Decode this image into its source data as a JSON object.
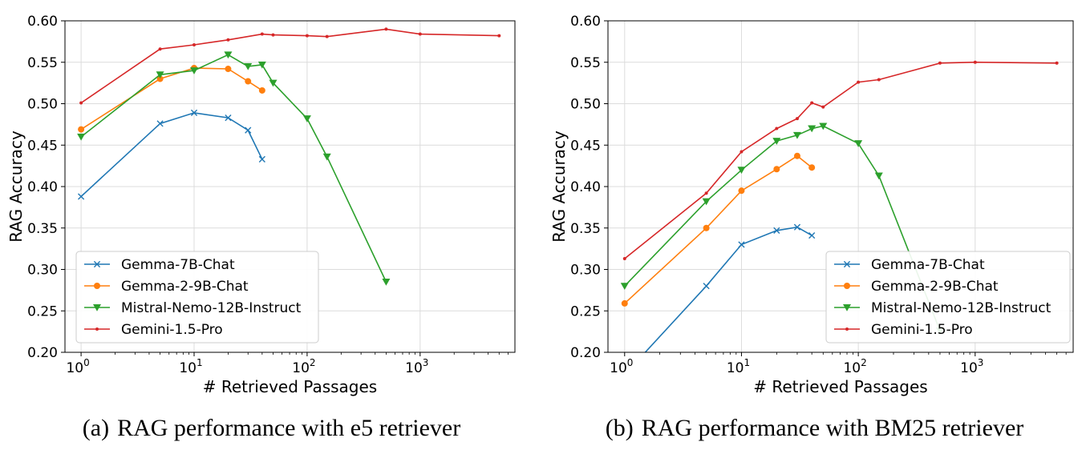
{
  "chart_data": [
    {
      "id": "a",
      "type": "line",
      "xscale": "log",
      "caption_tag": "(a)",
      "caption_text": "RAG performance with e5 retriever",
      "xlabel": "# Retrieved Passages",
      "ylabel": "RAG Accuracy",
      "ylim": [
        0.2,
        0.6
      ],
      "yticks": [
        "0.20",
        "0.25",
        "0.30",
        "0.35",
        "0.40",
        "0.45",
        "0.50",
        "0.55",
        "0.60"
      ],
      "xticks": [
        {
          "base": "10",
          "exp": "0"
        },
        {
          "base": "10",
          "exp": "1"
        },
        {
          "base": "10",
          "exp": "2"
        },
        {
          "base": "10",
          "exp": "3"
        }
      ],
      "grid": true,
      "legend_position": "lower-left",
      "series": [
        {
          "name": "Gemma-7B-Chat",
          "color": "#1f77b4",
          "marker": "x",
          "x": [
            1,
            5,
            10,
            20,
            30,
            40
          ],
          "y": [
            0.388,
            0.476,
            0.489,
            0.483,
            0.468,
            0.433
          ]
        },
        {
          "name": "Gemma-2-9B-Chat",
          "color": "#ff7f0e",
          "marker": "circle",
          "x": [
            1,
            5,
            10,
            20,
            30,
            40
          ],
          "y": [
            0.469,
            0.53,
            0.543,
            0.542,
            0.527,
            0.516
          ]
        },
        {
          "name": "Mistral-Nemo-12B-Instruct",
          "color": "#2ca02c",
          "marker": "triangle-down",
          "x": [
            1,
            5,
            10,
            20,
            30,
            40,
            50,
            100,
            150,
            500
          ],
          "y": [
            0.46,
            0.535,
            0.54,
            0.559,
            0.545,
            0.547,
            0.525,
            0.482,
            0.436,
            0.285
          ]
        },
        {
          "name": "Gemini-1.5-Pro",
          "color": "#d62728",
          "marker": "dot",
          "x": [
            1,
            5,
            10,
            20,
            40,
            50,
            100,
            150,
            500,
            1000,
            5000
          ],
          "y": [
            0.501,
            0.566,
            0.571,
            0.577,
            0.584,
            0.583,
            0.582,
            0.581,
            0.59,
            0.584,
            0.582
          ]
        }
      ]
    },
    {
      "id": "b",
      "type": "line",
      "xscale": "log",
      "caption_tag": "(b)",
      "caption_text": "RAG performance with BM25 retriever",
      "xlabel": "# Retrieved Passages",
      "ylabel": "RAG Accuracy",
      "ylim": [
        0.2,
        0.6
      ],
      "yticks": [
        "0.20",
        "0.25",
        "0.30",
        "0.35",
        "0.40",
        "0.45",
        "0.50",
        "0.55",
        "0.60"
      ],
      "xticks": [
        {
          "base": "10",
          "exp": "0"
        },
        {
          "base": "10",
          "exp": "1"
        },
        {
          "base": "10",
          "exp": "2"
        },
        {
          "base": "10",
          "exp": "3"
        }
      ],
      "grid": true,
      "legend_position": "lower-right",
      "series": [
        {
          "name": "Gemma-7B-Chat",
          "color": "#1f77b4",
          "marker": "x",
          "x": [
            1,
            5,
            10,
            20,
            30,
            40
          ],
          "y": [
            0.173,
            0.28,
            0.33,
            0.347,
            0.351,
            0.341
          ]
        },
        {
          "name": "Gemma-2-9B-Chat",
          "color": "#ff7f0e",
          "marker": "circle",
          "x": [
            1,
            5,
            10,
            20,
            30,
            40
          ],
          "y": [
            0.259,
            0.35,
            0.395,
            0.421,
            0.437,
            0.423
          ]
        },
        {
          "name": "Mistral-Nemo-12B-Instruct",
          "color": "#2ca02c",
          "marker": "triangle-down",
          "x": [
            1,
            5,
            10,
            20,
            30,
            40,
            50,
            100,
            150,
            500
          ],
          "y": [
            0.28,
            0.382,
            0.42,
            0.455,
            0.462,
            0.47,
            0.473,
            0.452,
            0.413,
            0.226
          ]
        },
        {
          "name": "Gemini-1.5-Pro",
          "color": "#d62728",
          "marker": "dot",
          "x": [
            1,
            5,
            10,
            20,
            30,
            40,
            50,
            100,
            150,
            500,
            1000,
            5000
          ],
          "y": [
            0.313,
            0.392,
            0.442,
            0.47,
            0.482,
            0.501,
            0.496,
            0.526,
            0.529,
            0.549,
            0.55,
            0.549
          ]
        }
      ]
    }
  ]
}
